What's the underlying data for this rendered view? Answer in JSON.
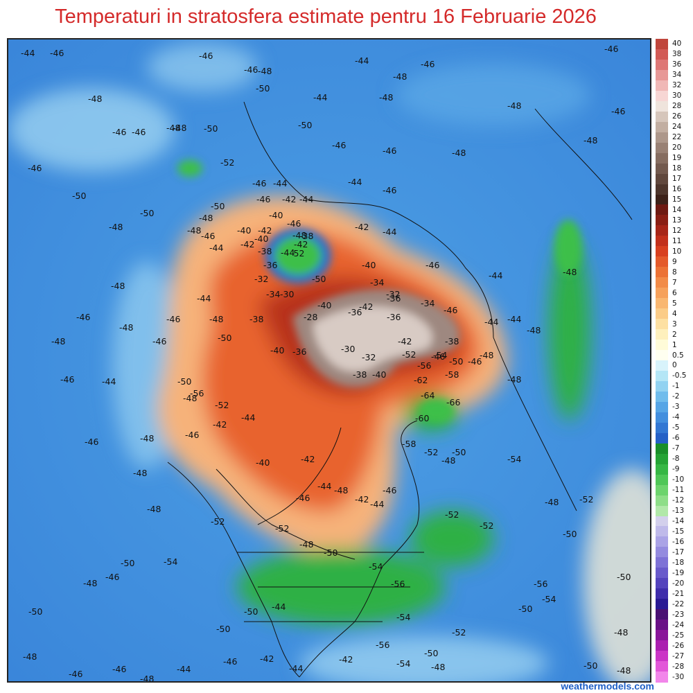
{
  "title": "Temperaturi in stratosfera estimate pentru 16 Februarie 2026",
  "credit": "weathermodels.com",
  "colorbar": {
    "labels": [
      "40",
      "38",
      "36",
      "34",
      "32",
      "30",
      "28",
      "26",
      "24",
      "22",
      "20",
      "19",
      "18",
      "17",
      "16",
      "15",
      "14",
      "13",
      "12",
      "11",
      "10",
      "9",
      "8",
      "7",
      "6",
      "5",
      "4",
      "3",
      "2",
      "1",
      "0.5",
      "0",
      "-0.5",
      "-1",
      "-2",
      "-3",
      "-4",
      "-5",
      "-6",
      "-7",
      "-8",
      "-9",
      "-10",
      "-11",
      "-12",
      "-13",
      "-14",
      "-15",
      "-16",
      "-17",
      "-18",
      "-19",
      "-20",
      "-21",
      "-22",
      "-23",
      "-24",
      "-25",
      "-26",
      "-27",
      "-28",
      "-30"
    ],
    "colors": [
      "#c0463c",
      "#d25a55",
      "#de7775",
      "#e79896",
      "#f0b8b6",
      "#f7d6d4",
      "#efe4dc",
      "#d6c6bb",
      "#c2aea1",
      "#ad978a",
      "#998174",
      "#866d60",
      "#735a4e",
      "#61483d",
      "#4e362c",
      "#3d2219",
      "#6e1a12",
      "#8a1f14",
      "#a72618",
      "#c2301b",
      "#d8401f",
      "#e45a2a",
      "#ec7235",
      "#f28b47",
      "#f6a15b",
      "#f9b771",
      "#fbcc88",
      "#fde0a2",
      "#fef0bd",
      "#fffbd8",
      "#fffff0",
      "#d8f3fb",
      "#b4e6f6",
      "#92d2f1",
      "#70bcec",
      "#56a5e6",
      "#428ede",
      "#3277d3",
      "#2460c6",
      "#1a8f2a",
      "#25a435",
      "#36b744",
      "#4fc757",
      "#6dd46d",
      "#8ede88",
      "#b1e8a9",
      "#d3d0ec",
      "#bfbaea",
      "#aaa3e6",
      "#948bdf",
      "#7e72d6",
      "#695acb",
      "#5443bd",
      "#3f2dab",
      "#2a1a94",
      "#4a1173",
      "#6a1186",
      "#8a169a",
      "#ab1fb0",
      "#cb35c6",
      "#e257d8",
      "#f286ea"
    ]
  },
  "contour_labels": {
    "values": [
      "-44",
      "-46",
      "-46",
      "-46",
      "-44",
      "-46",
      "-48",
      "-50",
      "-48",
      "-44",
      "-46",
      "-48",
      "-48",
      "-46",
      "-48",
      "-50",
      "-46",
      "-48",
      "-50",
      "-46",
      "-48",
      "-52",
      "-48",
      "-46",
      "-46",
      "-48",
      "-46",
      "-50",
      "-50",
      "-48",
      "-46",
      "-44",
      "-44",
      "-46",
      "-48",
      "-50",
      "-44",
      "-46",
      "-42",
      "-40",
      "-42",
      "-44",
      "-40",
      "-42",
      "-46",
      "-38",
      "-48",
      "-46",
      "-44",
      "-42",
      "-42",
      "-40",
      "-38",
      "-36",
      "-52",
      "-44",
      "-48",
      "-50",
      "-40",
      "-46",
      "-44",
      "-48",
      "-32",
      "-34",
      "-30",
      "-40",
      "-42",
      "-38",
      "-28",
      "-34",
      "-32",
      "-36",
      "-36",
      "-34",
      "-36",
      "-42",
      "-38",
      "-46",
      "-44",
      "-44",
      "-48",
      "-46",
      "-48",
      "-40",
      "-36",
      "-30",
      "-32",
      "-38",
      "-40",
      "-52",
      "-56",
      "-54",
      "-50",
      "-58",
      "-46",
      "-48",
      "-62",
      "-64",
      "-66",
      "-60",
      "-58",
      "-44",
      "-48",
      "-46",
      "-50",
      "-50",
      "-52",
      "-56",
      "-42",
      "-48",
      "-44",
      "-46",
      "-40",
      "-42",
      "-44",
      "-46",
      "-48",
      "-42",
      "-44",
      "-46",
      "-48",
      "-50",
      "-52",
      "-54",
      "-48",
      "-50",
      "-52",
      "-56",
      "-54",
      "-50",
      "-48",
      "-50",
      "-52",
      "-52",
      "-54",
      "-56",
      "-54",
      "-56",
      "-50",
      "-52",
      "-54",
      "-48",
      "-50",
      "-48",
      "-46",
      "-48",
      "-50",
      "-48",
      "-46",
      "-46",
      "-48",
      "-44",
      "-46",
      "-44",
      "-42",
      "-42",
      "-44",
      "-50",
      "-50",
      "-52",
      "-50",
      "-48",
      "-52",
      "-54",
      "-50",
      "-48",
      "-48",
      "-48",
      "-46",
      "-46",
      "-44",
      "-48",
      "-46",
      "-48",
      "-48",
      "-46",
      "-46",
      "-44",
      "-42",
      "-44"
    ]
  }
}
